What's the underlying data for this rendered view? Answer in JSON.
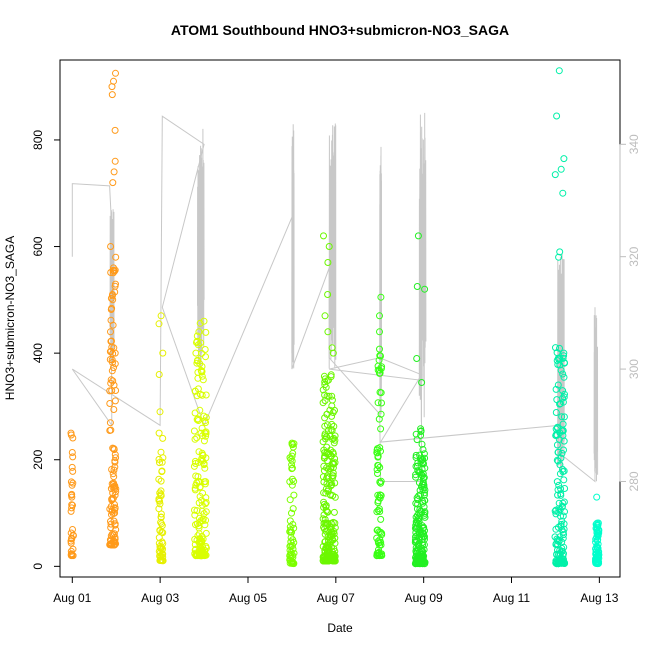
{
  "chart_data": {
    "type": "scatter",
    "title": "ATOM1 Southbound HNO3+submicron-NO3_SAGA",
    "xlabel": "Date",
    "ylabel": "HNO3+submicron-NO3_SAGA",
    "x_ticks": [
      "Aug 01",
      "Aug 03",
      "Aug 05",
      "Aug 07",
      "Aug 09",
      "Aug 11",
      "Aug 13"
    ],
    "x_tick_days": [
      1,
      3,
      5,
      7,
      9,
      11,
      13
    ],
    "xlim_days": [
      0.72,
      13.47
    ],
    "y_ticks": [
      0,
      200,
      400,
      600,
      800
    ],
    "ylim": [
      -20,
      950
    ],
    "y2_ticks": [
      280,
      300,
      320,
      340
    ],
    "y2lim": [
      263,
      355
    ],
    "colors": {
      "axis": "#000000",
      "secondary_axis": "#bdbdbd",
      "line": "#c8c8c8"
    },
    "scatter_clusters": [
      {
        "day": 1.0,
        "spread": 0.03,
        "color": "#ff9a1a",
        "n": 30,
        "values_range": [
          20,
          250
        ],
        "outliers": [
          250,
          135,
          130
        ]
      },
      {
        "day": 1.92,
        "spread": 0.07,
        "color": "#ff9a1a",
        "n": 110,
        "values_range": [
          40,
          600
        ],
        "outliers": [
          925,
          910,
          900,
          885,
          818,
          760,
          740,
          720,
          600,
          580,
          560,
          510,
          500,
          440,
          410,
          400,
          380,
          350
        ]
      },
      {
        "day": 3.02,
        "spread": 0.05,
        "color": "#e6f000",
        "n": 55,
        "values_range": [
          10,
          230
        ],
        "outliers": [
          470,
          455,
          400,
          360,
          290,
          250,
          240
        ]
      },
      {
        "day": 3.92,
        "spread": 0.14,
        "color": "#d9ff00",
        "n": 170,
        "values_range": [
          20,
          460
        ],
        "outliers": [
          460,
          440,
          420,
          400,
          380,
          350
        ]
      },
      {
        "day": 6.0,
        "spread": 0.05,
        "color": "#7dff00",
        "n": 60,
        "values_range": [
          5,
          250
        ],
        "outliers": []
      },
      {
        "day": 6.85,
        "spread": 0.14,
        "color": "#6cf700",
        "n": 230,
        "values_range": [
          10,
          360
        ],
        "outliers": [
          620,
          600,
          570,
          510,
          470,
          440,
          410,
          400
        ]
      },
      {
        "day": 7.99,
        "spread": 0.06,
        "color": "#39ff14",
        "n": 75,
        "values_range": [
          20,
          420
        ],
        "outliers": [
          505,
          470,
          440
        ]
      },
      {
        "day": 8.92,
        "spread": 0.11,
        "color": "#22f022",
        "n": 190,
        "values_range": [
          5,
          260
        ],
        "outliers": [
          620,
          525,
          520,
          390,
          345
        ]
      },
      {
        "day": 12.1,
        "spread": 0.11,
        "color": "#00f0a8",
        "n": 150,
        "values_range": [
          5,
          420
        ],
        "outliers": [
          930,
          845,
          765,
          745,
          735,
          700,
          590,
          580
        ]
      },
      {
        "day": 12.95,
        "spread": 0.04,
        "color": "#00ffcc",
        "n": 70,
        "values_range": [
          5,
          85
        ],
        "outliers": [
          130
        ]
      }
    ],
    "secondary_line": {
      "axis": "y2",
      "breakpoints": [
        [
          1.0,
          320
        ],
        [
          1.0,
          333
        ],
        [
          1.85,
          332.6
        ],
        [
          1.88,
          328
        ],
        [
          1.9,
          290
        ],
        [
          1.0,
          300
        ],
        [
          3.0,
          290
        ],
        [
          3.05,
          345
        ],
        [
          4.0,
          340
        ],
        [
          3.05,
          311
        ],
        [
          4.0,
          290
        ],
        [
          6.0,
          327
        ],
        [
          6.0,
          300
        ],
        [
          6.85,
          318
        ],
        [
          6.85,
          302
        ],
        [
          8.0,
          292
        ],
        [
          8.02,
          280
        ],
        [
          8.95,
          280
        ],
        [
          8.95,
          298
        ],
        [
          6.85,
          300
        ],
        [
          8.0,
          302
        ],
        [
          8.95,
          299
        ],
        [
          8.02,
          287
        ],
        [
          12.1,
          290
        ],
        [
          12.1,
          303
        ],
        [
          12.1,
          285
        ],
        [
          12.9,
          280
        ],
        [
          12.9,
          311
        ]
      ]
    }
  }
}
